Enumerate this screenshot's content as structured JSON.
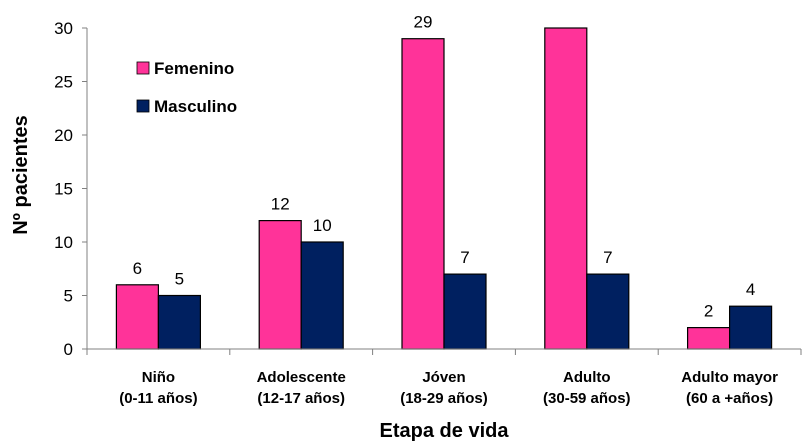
{
  "chart_data": {
    "type": "bar",
    "title": "",
    "xlabel": "Etapa de vida",
    "ylabel": "Nº pacientes",
    "ylim": [
      0,
      30
    ],
    "yticks": [
      0,
      5,
      10,
      15,
      20,
      25,
      30
    ],
    "grid": false,
    "legend_position": "top-left",
    "categories": [
      [
        "Niño",
        "(0-11 años)"
      ],
      [
        "Adolescente",
        "(12-17 años)"
      ],
      [
        "Jóven",
        "(18-29 años)"
      ],
      [
        "Adulto",
        "(30-59 años)"
      ],
      [
        "Adulto mayor",
        "(60 a +años)"
      ]
    ],
    "series": [
      {
        "name": "Femenino",
        "color": "#ff3399",
        "values": [
          6,
          12,
          29,
          30,
          2
        ],
        "labels": [
          "6",
          "12",
          "29",
          "",
          "2"
        ]
      },
      {
        "name": "Masculino",
        "color": "#002060",
        "values": [
          5,
          10,
          7,
          7,
          4
        ],
        "labels": [
          "5",
          "10",
          "7",
          "7",
          "4"
        ]
      }
    ]
  }
}
